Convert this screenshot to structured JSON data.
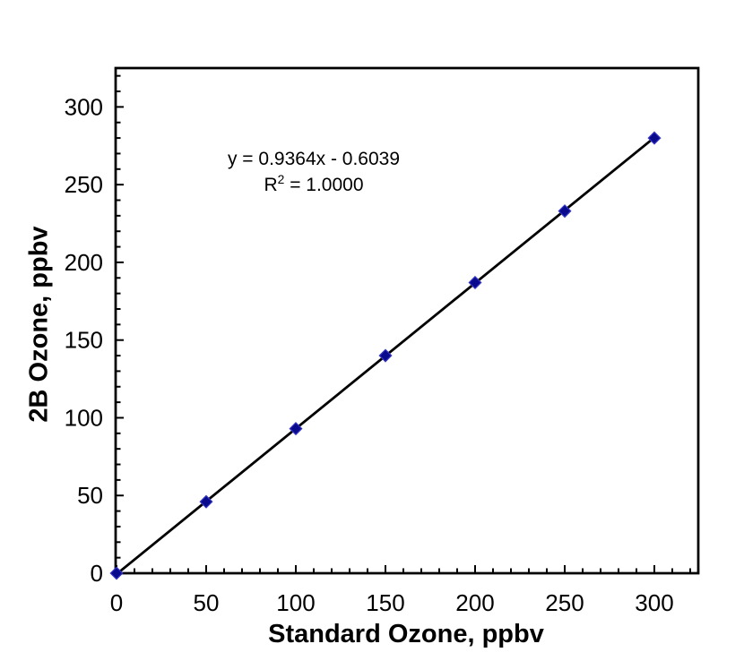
{
  "annotation": {
    "line1": "y = 0.9364x - 0.6039",
    "r2_base": "R",
    "r2_sup": "2",
    "r2_rest": " = 1.0000"
  },
  "chart_data": {
    "type": "scatter",
    "title": "",
    "xlabel": "Standard Ozone, ppbv",
    "ylabel": "2B Ozone, ppbv",
    "x": [
      0,
      50,
      100,
      150,
      200,
      250,
      300
    ],
    "y": [
      0,
      46,
      93,
      140,
      187,
      233,
      280
    ],
    "xlim": [
      0,
      325
    ],
    "ylim": [
      0,
      325
    ],
    "xticks": [
      0,
      50,
      100,
      150,
      200,
      250,
      300
    ],
    "yticks": [
      0,
      50,
      100,
      150,
      200,
      250,
      300
    ],
    "minor_tick_step": 10,
    "grid": false,
    "legend_position": "none",
    "marker": "diamond",
    "marker_color": "#0a0a8c",
    "marker_edge_color": "#3535c6",
    "line_color": "#000000",
    "axis_color": "#000000",
    "trendline": {
      "slope": 0.9364,
      "intercept": -0.6039,
      "r_squared": "1.0000"
    },
    "annotations": [
      "y = 0.9364x - 0.6039",
      "R² = 1.0000"
    ]
  }
}
